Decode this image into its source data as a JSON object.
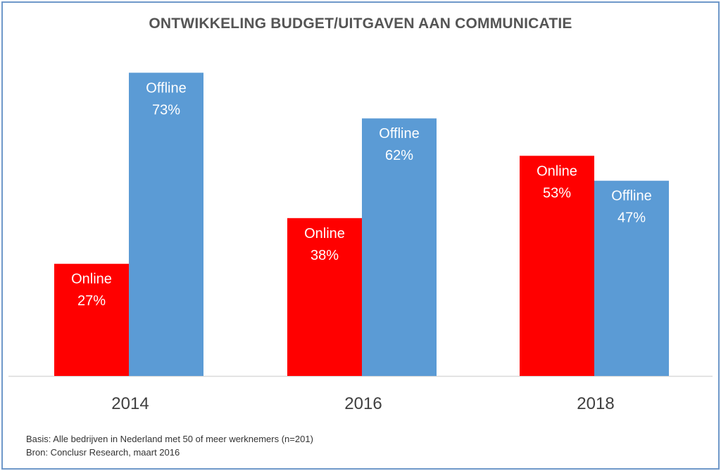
{
  "chart_data": {
    "type": "bar",
    "title": "ONTWIKKELING BUDGET/UITGAVEN AAN COMMUNICATIE",
    "categories": [
      "2014",
      "2016",
      "2018"
    ],
    "series": [
      {
        "name": "Online",
        "color": "#ff0000",
        "values": [
          27,
          38,
          53
        ]
      },
      {
        "name": "Offline",
        "color": "#5b9bd5",
        "values": [
          73,
          62,
          47
        ]
      }
    ],
    "unit": "%",
    "ylim": [
      0,
      100
    ],
    "xlabel": "",
    "ylabel": "",
    "grid": false,
    "legend": "none",
    "data_labels": "inside bars: series name and value"
  },
  "footnotes": {
    "basis": "Basis: Alle bedrijven in Nederland met 50 of meer werknemers (n=201)",
    "source": "Bron: Conclusr Research, maart 2016"
  },
  "colors": {
    "title": "#555555",
    "border": "#6f98c9",
    "axis": "#d9d9d9",
    "label_text": "#ffffff",
    "tick_text": "#404040"
  }
}
